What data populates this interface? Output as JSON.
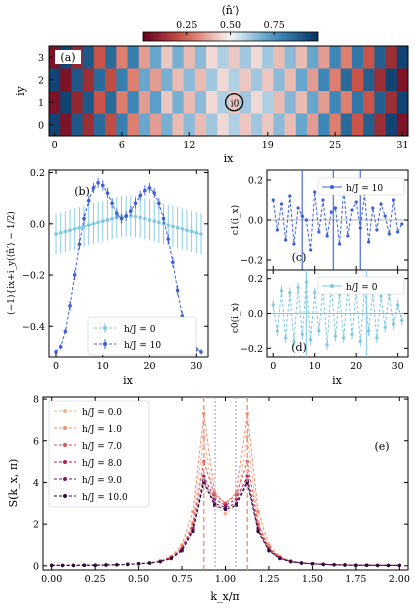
{
  "chart_data": [
    {
      "panel": "a",
      "type": "heatmap",
      "panel_label": "(a)",
      "colorbar_label": "⟨n̂′⟩",
      "colorbar_ticks": [
        "0.25",
        "0.50",
        "0.75"
      ],
      "colorbar_range": [
        0.0,
        1.0
      ],
      "xlabel": "i_x",
      "ylabel": "i_y",
      "xticks": [
        0,
        6,
        12,
        19,
        25,
        31
      ],
      "yticks": [
        0,
        1,
        2,
        3
      ],
      "marker_label": "i_0",
      "marker_site": [
        16,
        1
      ],
      "rows_top_to_bottom": [
        [
          0.05,
          0.95,
          0.1,
          0.9,
          0.22,
          0.85,
          0.3,
          0.8,
          0.35,
          0.7,
          0.42,
          0.68,
          0.4,
          0.65,
          0.45,
          0.6,
          0.42,
          0.62,
          0.45,
          0.62,
          0.4,
          0.65,
          0.4,
          0.7,
          0.35,
          0.78,
          0.3,
          0.82,
          0.22,
          0.88,
          0.12,
          0.95
        ],
        [
          0.95,
          0.05,
          0.9,
          0.12,
          0.85,
          0.2,
          0.8,
          0.3,
          0.7,
          0.35,
          0.68,
          0.4,
          0.65,
          0.4,
          0.62,
          0.45,
          0.6,
          0.42,
          0.62,
          0.42,
          0.65,
          0.4,
          0.7,
          0.35,
          0.78,
          0.3,
          0.85,
          0.22,
          0.88,
          0.12,
          0.95,
          0.05
        ],
        [
          0.05,
          0.95,
          0.1,
          0.9,
          0.22,
          0.85,
          0.3,
          0.78,
          0.35,
          0.72,
          0.42,
          0.68,
          0.4,
          0.65,
          0.45,
          0.6,
          0.42,
          0.62,
          0.45,
          0.6,
          0.4,
          0.66,
          0.4,
          0.7,
          0.35,
          0.78,
          0.3,
          0.82,
          0.22,
          0.88,
          0.12,
          0.95
        ],
        [
          0.95,
          0.05,
          0.9,
          0.12,
          0.85,
          0.2,
          0.8,
          0.3,
          0.7,
          0.35,
          0.68,
          0.4,
          0.65,
          0.4,
          0.62,
          0.45,
          0.6,
          0.42,
          0.62,
          0.42,
          0.65,
          0.4,
          0.7,
          0.35,
          0.78,
          0.3,
          0.85,
          0.22,
          0.88,
          0.12,
          0.95,
          0.05
        ]
      ]
    },
    {
      "panel": "b",
      "type": "line",
      "panel_label": "(b)",
      "xlabel": "i_x",
      "ylabel": "(−1)^{i_x+i_y}(⟨n̂′⟩ − 1/2)",
      "xlim": [
        -1.5,
        32.5
      ],
      "ylim": [
        -0.52,
        0.21
      ],
      "xticks": [
        0,
        10,
        20,
        30
      ],
      "yticks": [
        -0.4,
        -0.2,
        0.0,
        0.2
      ],
      "ytick_labels": [
        "−0.4",
        "−0.2",
        "0.0",
        "0.2"
      ],
      "series": [
        {
          "name": "h/J = 0",
          "color": "#7ec8e3",
          "x": [
            0,
            1,
            2,
            3,
            4,
            5,
            6,
            7,
            8,
            9,
            10,
            11,
            12,
            13,
            14,
            15,
            16,
            17,
            18,
            19,
            20,
            21,
            22,
            23,
            24,
            25,
            26,
            27,
            28,
            29,
            30,
            31
          ],
          "y": [
            -0.04,
            -0.035,
            -0.03,
            -0.025,
            -0.02,
            -0.015,
            -0.01,
            -0.005,
            0.0,
            0.005,
            0.01,
            0.015,
            0.02,
            0.025,
            0.028,
            0.03,
            0.03,
            0.028,
            0.025,
            0.02,
            0.015,
            0.01,
            0.005,
            0.0,
            -0.005,
            -0.01,
            -0.015,
            -0.02,
            -0.025,
            -0.03,
            -0.035,
            -0.04
          ],
          "err": [
            0.08,
            0.08,
            0.08,
            0.08,
            0.08,
            0.08,
            0.08,
            0.08,
            0.08,
            0.08,
            0.08,
            0.08,
            0.08,
            0.08,
            0.08,
            0.08,
            0.08,
            0.08,
            0.08,
            0.08,
            0.08,
            0.08,
            0.08,
            0.08,
            0.08,
            0.08,
            0.08,
            0.08,
            0.08,
            0.08,
            0.08,
            0.08
          ]
        },
        {
          "name": "h/J = 10",
          "color": "#3b5fd9",
          "x": [
            0,
            1,
            2,
            3,
            4,
            5,
            6,
            7,
            8,
            9,
            10,
            11,
            12,
            13,
            14,
            15,
            16,
            17,
            18,
            19,
            20,
            21,
            22,
            23,
            24,
            25,
            26,
            27,
            28,
            29,
            30,
            31
          ],
          "y": [
            -0.5,
            -0.48,
            -0.42,
            -0.32,
            -0.2,
            -0.08,
            0.02,
            0.09,
            0.14,
            0.16,
            0.15,
            0.12,
            0.08,
            0.04,
            0.02,
            0.03,
            0.05,
            0.08,
            0.11,
            0.13,
            0.14,
            0.12,
            0.08,
            0.02,
            -0.06,
            -0.15,
            -0.26,
            -0.36,
            -0.43,
            -0.47,
            -0.49,
            -0.5
          ],
          "err": [
            0.01,
            0.01,
            0.01,
            0.02,
            0.02,
            0.02,
            0.02,
            0.02,
            0.02,
            0.02,
            0.02,
            0.02,
            0.02,
            0.02,
            0.02,
            0.02,
            0.02,
            0.02,
            0.02,
            0.02,
            0.02,
            0.02,
            0.02,
            0.02,
            0.02,
            0.02,
            0.02,
            0.02,
            0.01,
            0.01,
            0.01,
            0.01
          ]
        }
      ]
    },
    {
      "panel": "c",
      "type": "line",
      "panel_label": "(c)",
      "ylabel": "c_1(i_x)",
      "xlim": [
        -1.5,
        32.5
      ],
      "ylim": [
        -0.25,
        0.25
      ],
      "yticks": [
        -0.2,
        0.0,
        0.2
      ],
      "ytick_labels": [
        "−0.2",
        "0.0",
        "0.2"
      ],
      "series": [
        {
          "name": "h/J = 10",
          "color": "#3b5fd9",
          "x": [
            0,
            1,
            2,
            3,
            4,
            5,
            6,
            7,
            8,
            9,
            10,
            11,
            12,
            13,
            14,
            15,
            16,
            17,
            18,
            19,
            20,
            21,
            22,
            23,
            24,
            25,
            26,
            27,
            28,
            29,
            30,
            31
          ],
          "y": [
            0.1,
            -0.05,
            0.08,
            -0.1,
            0.12,
            -0.12,
            0.06,
            0.02,
            0.0,
            -0.15,
            0.14,
            -0.06,
            0.1,
            -0.08,
            0.04,
            0.06,
            -0.12,
            0.15,
            -0.08,
            0.05,
            0.09,
            -0.04,
            0.13,
            -0.11,
            0.06,
            -0.05,
            0.08,
            0.02,
            -0.07,
            0.1,
            -0.06,
            -0.02
          ],
          "err": [
            0.0,
            0.0,
            0.0,
            0.0,
            0.0,
            0.0,
            0.0,
            0.0,
            0.0,
            0.0,
            0.0,
            0.0,
            0.0,
            0.0,
            0.0,
            0.0,
            0.0,
            0.0,
            0.0,
            0.0,
            0.0,
            0.0,
            0.0,
            0.0,
            0.0,
            0.0,
            0.0,
            0.0,
            0.0,
            0.0,
            0.0,
            0.0
          ]
        }
      ]
    },
    {
      "panel": "d",
      "type": "line",
      "panel_label": "(d)",
      "xlabel": "i_x",
      "ylabel": "c_0(i_x)",
      "xlim": [
        -1.5,
        32.5
      ],
      "ylim": [
        -0.25,
        0.25
      ],
      "xticks": [
        0,
        10,
        20,
        30
      ],
      "yticks": [
        -0.2,
        0.0,
        0.2
      ],
      "ytick_labels": [
        "−0.2",
        "0.0",
        "0.2"
      ],
      "series": [
        {
          "name": "h/J = 0",
          "color": "#7ec8e3",
          "x": [
            0,
            1,
            2,
            3,
            4,
            5,
            6,
            7,
            8,
            9,
            10,
            11,
            12,
            13,
            14,
            15,
            16,
            17,
            18,
            19,
            20,
            21,
            22,
            23,
            24,
            25,
            26,
            27,
            28,
            29,
            30,
            31
          ],
          "y": [
            0.05,
            -0.1,
            0.13,
            -0.14,
            0.12,
            -0.16,
            0.15,
            -0.12,
            0.18,
            -0.15,
            0.12,
            -0.1,
            0.14,
            -0.18,
            0.16,
            -0.13,
            0.11,
            -0.14,
            0.15,
            -0.12,
            0.13,
            -0.16,
            0.14,
            -0.1,
            0.12,
            -0.14,
            0.1,
            -0.08,
            0.11,
            -0.06,
            0.05,
            -0.04
          ],
          "err": [
            0.03,
            0.03,
            0.03,
            0.03,
            0.03,
            0.03,
            0.03,
            0.03,
            0.03,
            0.03,
            0.03,
            0.03,
            0.03,
            0.03,
            0.03,
            0.03,
            0.03,
            0.03,
            0.03,
            0.03,
            0.03,
            0.03,
            0.03,
            0.03,
            0.03,
            0.03,
            0.03,
            0.03,
            0.03,
            0.03,
            0.03,
            0.03
          ]
        }
      ]
    },
    {
      "panel": "e",
      "type": "line",
      "panel_label": "(e)",
      "xlabel": "k_x/π",
      "ylabel": "S(k_x, π)",
      "xlim": [
        -0.05,
        2.05
      ],
      "ylim": [
        -0.2,
        8.1
      ],
      "xticks": [
        0.0,
        0.25,
        0.5,
        0.75,
        1.0,
        1.25,
        1.5,
        1.75,
        2.0
      ],
      "xtick_labels": [
        "0.00",
        "0.25",
        "0.50",
        "0.75",
        "1.00",
        "1.25",
        "1.50",
        "1.75",
        "2.00"
      ],
      "yticks": [
        0,
        2,
        4,
        6,
        8
      ],
      "vlines_dashed": [
        0.875,
        1.125
      ],
      "vlines_dotted": [
        0.94,
        1.06
      ],
      "x": [
        0.0,
        0.0625,
        0.125,
        0.1875,
        0.25,
        0.3125,
        0.375,
        0.4375,
        0.5,
        0.5625,
        0.625,
        0.6875,
        0.75,
        0.8125,
        0.875,
        0.9375,
        1.0,
        1.0625,
        1.125,
        1.1875,
        1.25,
        1.3125,
        1.375,
        1.4375,
        1.5,
        1.5625,
        1.625,
        1.6875,
        1.75,
        1.8125,
        1.875,
        1.9375,
        2.0
      ],
      "series": [
        {
          "name": "h/J = 0.0",
          "color": "#f6b08a",
          "y": [
            0.02,
            0.02,
            0.02,
            0.03,
            0.03,
            0.04,
            0.05,
            0.07,
            0.1,
            0.14,
            0.22,
            0.4,
            0.85,
            2.1,
            6.2,
            2.9,
            2.5,
            2.9,
            6.2,
            2.1,
            0.85,
            0.4,
            0.22,
            0.14,
            0.1,
            0.07,
            0.05,
            0.04,
            0.03,
            0.03,
            0.02,
            0.02,
            0.02
          ]
        },
        {
          "name": "h/J = 1.0",
          "color": "#f08c6a",
          "y": [
            0.02,
            0.02,
            0.02,
            0.03,
            0.03,
            0.04,
            0.05,
            0.07,
            0.1,
            0.15,
            0.24,
            0.45,
            1.0,
            2.6,
            7.3,
            3.5,
            3.0,
            3.5,
            7.3,
            2.6,
            1.0,
            0.45,
            0.24,
            0.15,
            0.1,
            0.07,
            0.05,
            0.04,
            0.03,
            0.03,
            0.02,
            0.02,
            0.02
          ]
        },
        {
          "name": "h/J = 7.0",
          "color": "#e0505a",
          "y": [
            0.02,
            0.02,
            0.02,
            0.03,
            0.03,
            0.04,
            0.05,
            0.07,
            0.1,
            0.14,
            0.22,
            0.4,
            0.85,
            2.0,
            5.0,
            3.4,
            3.0,
            3.4,
            5.0,
            2.0,
            0.85,
            0.4,
            0.22,
            0.14,
            0.1,
            0.07,
            0.05,
            0.04,
            0.03,
            0.03,
            0.02,
            0.02,
            0.02
          ]
        },
        {
          "name": "h/J = 8.0",
          "color": "#b02054",
          "y": [
            0.02,
            0.02,
            0.02,
            0.03,
            0.03,
            0.04,
            0.05,
            0.07,
            0.1,
            0.14,
            0.21,
            0.38,
            0.8,
            1.8,
            4.3,
            3.2,
            2.9,
            3.2,
            4.3,
            1.8,
            0.8,
            0.38,
            0.21,
            0.14,
            0.1,
            0.07,
            0.05,
            0.04,
            0.03,
            0.03,
            0.02,
            0.02,
            0.02
          ]
        },
        {
          "name": "h/J = 9.0",
          "color": "#7a1a5e",
          "y": [
            0.02,
            0.02,
            0.02,
            0.03,
            0.03,
            0.04,
            0.05,
            0.07,
            0.1,
            0.13,
            0.2,
            0.36,
            0.75,
            1.7,
            4.1,
            3.0,
            2.8,
            3.0,
            4.1,
            1.7,
            0.75,
            0.36,
            0.2,
            0.13,
            0.1,
            0.07,
            0.05,
            0.04,
            0.03,
            0.03,
            0.02,
            0.02,
            0.02
          ]
        },
        {
          "name": "h/J = 10.0",
          "color": "#2a0f3e",
          "y": [
            0.02,
            0.02,
            0.02,
            0.03,
            0.03,
            0.04,
            0.05,
            0.07,
            0.1,
            0.13,
            0.2,
            0.35,
            0.72,
            1.65,
            4.0,
            2.9,
            2.7,
            2.9,
            4.0,
            1.65,
            0.72,
            0.35,
            0.2,
            0.13,
            0.1,
            0.07,
            0.05,
            0.04,
            0.03,
            0.03,
            0.02,
            0.02,
            0.02
          ]
        }
      ]
    }
  ]
}
